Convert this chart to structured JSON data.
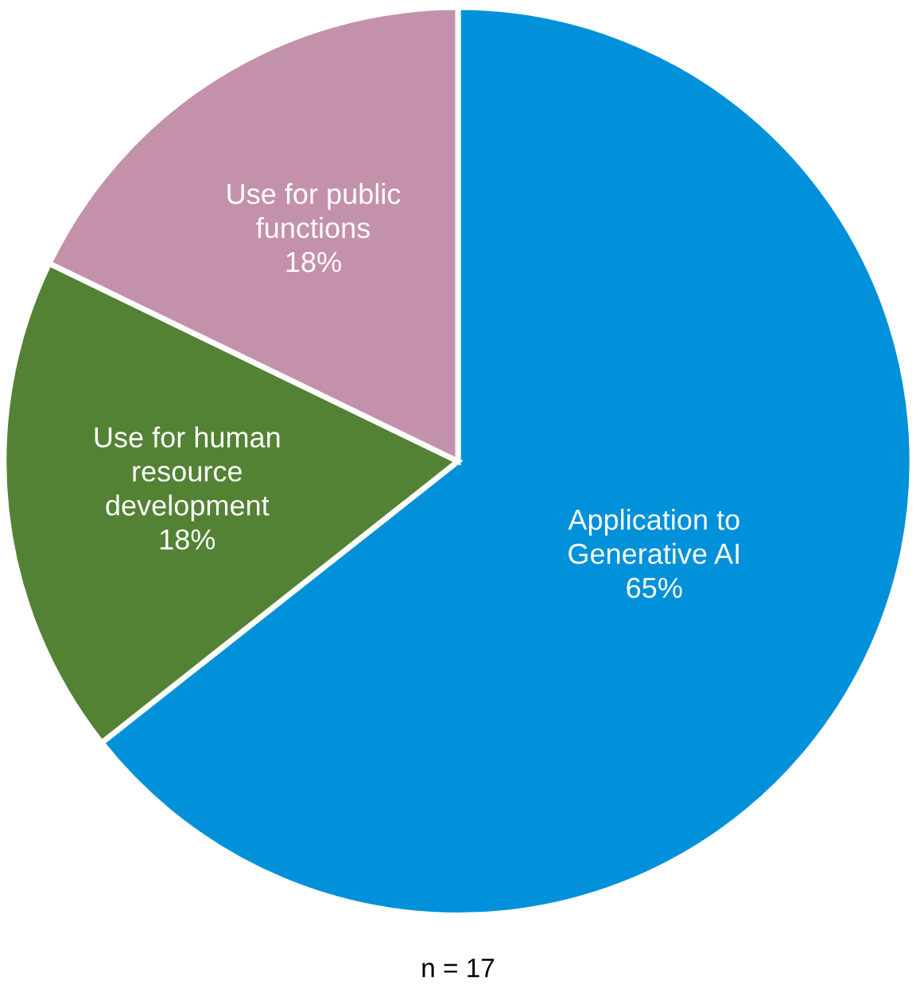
{
  "chart_data": {
    "type": "pie",
    "categories": [
      "Application to\nGenerative AI",
      "Use for human\nresource\ndevelopment",
      "Use for public\nfunctions"
    ],
    "values": [
      65,
      18,
      18
    ],
    "colors": [
      "#0091da",
      "#548235",
      "#c491ab"
    ],
    "value_labels": [
      "65%",
      "18%",
      "18%"
    ],
    "legend": false,
    "annotations": [
      "n = 17"
    ]
  }
}
